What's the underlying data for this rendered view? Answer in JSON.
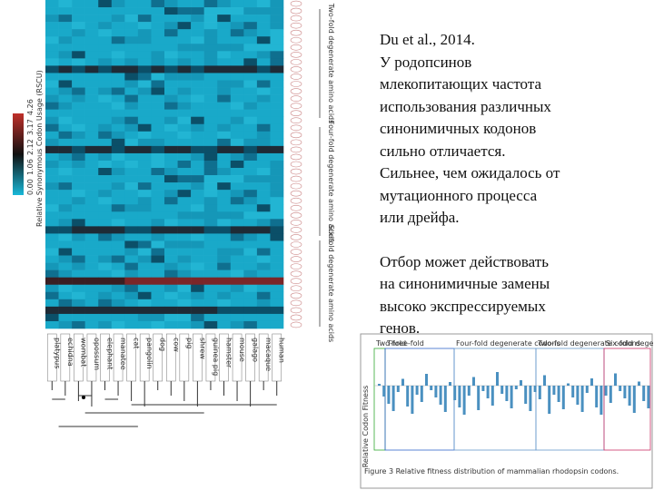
{
  "citation": "Du et al., 2014.",
  "paragraphs": [
    [
      "У родопсинов",
      "млекопитающих частота",
      "использования различных",
      "синонимичных кодонов",
      "сильно отличается.",
      "Сильнее, чем ожидалось от",
      "мутационного процесса",
      "или дрейфа."
    ],
    [
      "Отбор может действовать",
      "на синонимичные замены",
      "высоко экспрессируемых",
      "генов."
    ]
  ],
  "heatmap": {
    "axis_label": "Relative Synonymous Codon Usage (RSCU)",
    "colorbar_ticks": [
      "0.00",
      "1.06",
      "2.12",
      "3.17",
      "4.26"
    ],
    "species": [
      "platypus",
      "echidna",
      "wombat",
      "opossum",
      "elephant",
      "manatee",
      "cat",
      "pangolin",
      "dog",
      "cow",
      "pig",
      "shrew",
      "guinea pig",
      "hamster",
      "mouse",
      "galago",
      "macaque",
      "human"
    ],
    "group_labels": [
      "Two-fold degenerate amino acids",
      "Four-fold degenerate amino acids",
      "Six-fold degenerate amino acids"
    ]
  },
  "inset": {
    "y_label": "Relative Codon Fitness",
    "panels": [
      "Two-fold",
      "Three-fold",
      "Four-fold degenerate codons",
      "Two-fold degenerate codons",
      "Six-fold degenerate codons"
    ],
    "caption": "Figure 3 Relative fitness distribution of mammalian rhodopsin codons."
  }
}
